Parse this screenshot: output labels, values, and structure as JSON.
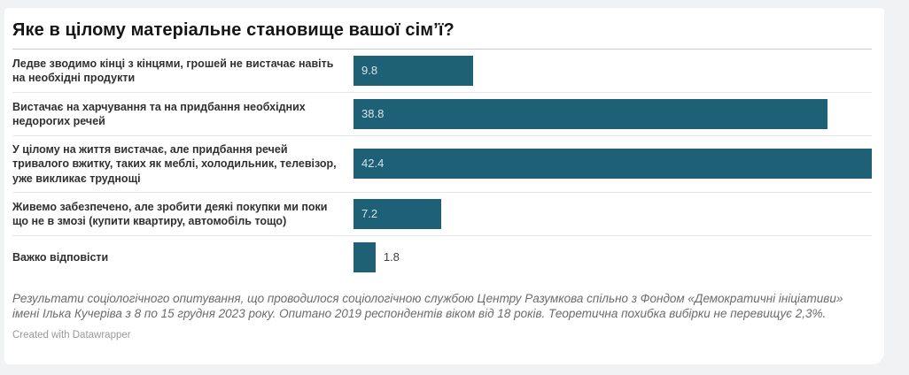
{
  "page": {
    "background": "#f1f2f4",
    "card_background": "#ffffff"
  },
  "header": {
    "title": "Яке в цілому матеріальне становище вашої сім’ї?"
  },
  "chart_data": {
    "type": "bar",
    "orientation": "horizontal",
    "title": "Яке в цілому матеріальне становище вашої сім’ї?",
    "categories": [
      "Ледве зводимо кінці з кінцями, грошей не вистачає навіть на необхідні продукти",
      "Вистачає на харчування та на придбання необхідних недорогих речей",
      "У цілому на життя вистачає, але придбання речей тривалого вжитку, таких як меблі, холодильник, телевізор, уже викликає труднощі",
      "Живемо забезпечено, але зробити деякі покупки ми поки що не в змозі (купити квартиру, автомобіль тощо)",
      "Важко відповісти"
    ],
    "values": [
      9.8,
      38.8,
      42.4,
      7.2,
      1.8
    ],
    "value_labels": [
      "9.8",
      "38.8",
      "42.4",
      "7.2",
      "1.8"
    ],
    "label_placement": [
      "inside",
      "inside",
      "inside",
      "inside",
      "outside"
    ],
    "xlim": [
      0,
      42.4
    ],
    "grid": false,
    "legend": "none",
    "bar_color": "#1e6076",
    "value_inside_color": "#d6e4ea",
    "value_outside_color": "#3f3f3f"
  },
  "footer": {
    "note": "Результати соціологічного опитування, що проводилося соціологічною службою Центру Разумкова спільно з Фондом «Демократичні ініціативи» імені Ілька Кучеріва з 8 по 15 грудня 2023 року. Опитано 2019 респондентів віком від 18 років. Теоретична похибка вибірки не перевищує 2,3%.",
    "attribution": "Created with Datawrapper"
  }
}
